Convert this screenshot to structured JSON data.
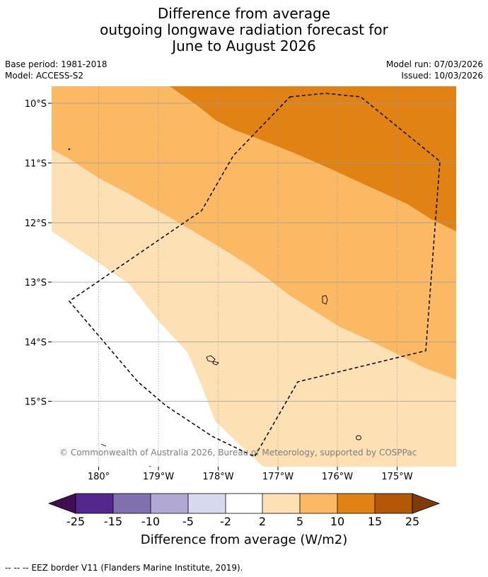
{
  "title": {
    "line1": "Difference from average",
    "line2": "outgoing longwave radiation forecast for",
    "line3": "June to August 2026"
  },
  "meta": {
    "base_period": "Base period: 1981-2018",
    "model": "Model: ACCESS-S2",
    "model_run": "Model run: 07/03/2026",
    "issued": "Issued: 10/03/2026"
  },
  "map": {
    "lat_labels": [
      "10°S",
      "11°S",
      "12°S",
      "13°S",
      "14°S",
      "15°S"
    ],
    "lon_labels": [
      "180°",
      "179°W",
      "178°W",
      "177°W",
      "176°W",
      "175°W"
    ],
    "copyright": "© Commonwealth of Australia 2026, Bureau of Meteorology, supported by COSPPac"
  },
  "colorbar": {
    "ticks": [
      "-25",
      "-15",
      "-10",
      "-5",
      "-2",
      "2",
      "5",
      "10",
      "15",
      "25"
    ],
    "colors": {
      "extend_low": "#3f0f52",
      "m25_m15": "#54278f",
      "m15_m10": "#8070ad",
      "m10_m5": "#b1a9d3",
      "m5_m2": "#d9d9ed",
      "m2_2": "#ffffff",
      "p2_5": "#fde0b4",
      "p5_10": "#fcb963",
      "p10_15": "#e08214",
      "p15_25": "#b35806",
      "extend_high": "#7f3b08"
    },
    "label": "Difference from average (W/m2)"
  },
  "footnote": "--  --  -- EEZ border V11 (Flanders Marine Institute, 2019)."
}
